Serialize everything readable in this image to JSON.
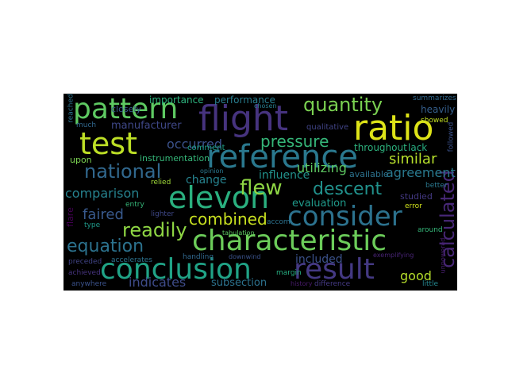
{
  "words": [
    {
      "text": "flight",
      "color": "#46337e"
    },
    {
      "text": "pattern",
      "color": "#5ec962"
    },
    {
      "text": "ratio",
      "color": "#dde318"
    },
    {
      "text": "test",
      "color": "#bddf26"
    },
    {
      "text": "reference",
      "color": "#2a788e"
    },
    {
      "text": "quantity",
      "color": "#7ad151"
    },
    {
      "text": "national",
      "color": "#31688e"
    },
    {
      "text": "occurred",
      "color": "#3b528b"
    },
    {
      "text": "pressure",
      "color": "#35b779"
    },
    {
      "text": "elevon",
      "color": "#2ab07f"
    },
    {
      "text": "flew",
      "color": "#8fd744"
    },
    {
      "text": "descent",
      "color": "#21918c"
    },
    {
      "text": "consider",
      "color": "#2c728e"
    },
    {
      "text": "calculated",
      "color": "#482878"
    },
    {
      "text": "characteristic",
      "color": "#6ccd5a"
    },
    {
      "text": "conclusion",
      "color": "#20a386"
    },
    {
      "text": "result",
      "color": "#443983"
    },
    {
      "text": "combined",
      "color": "#c8e020"
    },
    {
      "text": "readily",
      "color": "#8fd744"
    },
    {
      "text": "equation",
      "color": "#2c728e"
    },
    {
      "text": "faired",
      "color": "#38598c"
    },
    {
      "text": "comparison",
      "color": "#26828e"
    },
    {
      "text": "similar",
      "color": "#b5de2b"
    },
    {
      "text": "agreement",
      "color": "#29798e"
    },
    {
      "text": "manufacturer",
      "color": "#3f4889"
    },
    {
      "text": "performance",
      "color": "#287d8e"
    },
    {
      "text": "importance",
      "color": "#2db27d"
    },
    {
      "text": "included",
      "color": "#3b528b"
    },
    {
      "text": "good",
      "color": "#b5de2b"
    },
    {
      "text": "indicates",
      "color": "#3e4c8a"
    },
    {
      "text": "subsection",
      "color": "#2c728e"
    },
    {
      "text": "utilizing",
      "color": "#5ec962"
    },
    {
      "text": "throughout",
      "color": "#2db27d"
    },
    {
      "text": "lack",
      "color": "#27ad81"
    },
    {
      "text": "influence",
      "color": "#21918c"
    },
    {
      "text": "change",
      "color": "#26828e"
    },
    {
      "text": "instrumentation",
      "color": "#35b779"
    },
    {
      "text": "evaluation",
      "color": "#1f9a8a"
    },
    {
      "text": "available",
      "color": "#2c728e"
    },
    {
      "text": "closely",
      "color": "#38598c"
    },
    {
      "text": "upon",
      "color": "#7ad151"
    },
    {
      "text": "comment",
      "color": "#1fa188"
    },
    {
      "text": "qualitative",
      "color": "#414487"
    },
    {
      "text": "heavily",
      "color": "#355f8d"
    },
    {
      "text": "summarizes",
      "color": "#31688e"
    },
    {
      "text": "showed",
      "color": "#c2df23"
    },
    {
      "text": "followed",
      "color": "#3b528b"
    },
    {
      "text": "flare",
      "color": "#440154"
    },
    {
      "text": "studied",
      "color": "#443983"
    },
    {
      "text": "error",
      "color": "#d0e11c"
    },
    {
      "text": "better",
      "color": "#2a788e"
    },
    {
      "text": "around",
      "color": "#35b779"
    },
    {
      "text": "exemplifying",
      "color": "#482475"
    },
    {
      "text": "little",
      "color": "#24868e"
    },
    {
      "text": "history",
      "color": "#481a6c"
    },
    {
      "text": "difference",
      "color": "#443983"
    },
    {
      "text": "margin",
      "color": "#27ad81"
    },
    {
      "text": "downwind",
      "color": "#3b528b"
    },
    {
      "text": "handling",
      "color": "#31688e"
    },
    {
      "text": "accelerates",
      "color": "#2c728e"
    },
    {
      "text": "achieved",
      "color": "#46337e"
    },
    {
      "text": "preceded",
      "color": "#414487"
    },
    {
      "text": "anywhere",
      "color": "#3b528b"
    },
    {
      "text": "tabulation",
      "color": "#5ec962"
    },
    {
      "text": "type",
      "color": "#1f9a8a"
    },
    {
      "text": "relied",
      "color": "#a0da39"
    },
    {
      "text": "entry",
      "color": "#35b779"
    },
    {
      "text": "lighter",
      "color": "#3f4889"
    },
    {
      "text": "accom",
      "color": "#2c728e"
    },
    {
      "text": "opinion",
      "color": "#2a788e"
    },
    {
      "text": "much",
      "color": "#31688e"
    },
    {
      "text": "reached",
      "color": "#2c728e"
    },
    {
      "text": "unpowered",
      "color": "#481f70"
    },
    {
      "text": "chosen",
      "color": "#287d8e"
    }
  ]
}
